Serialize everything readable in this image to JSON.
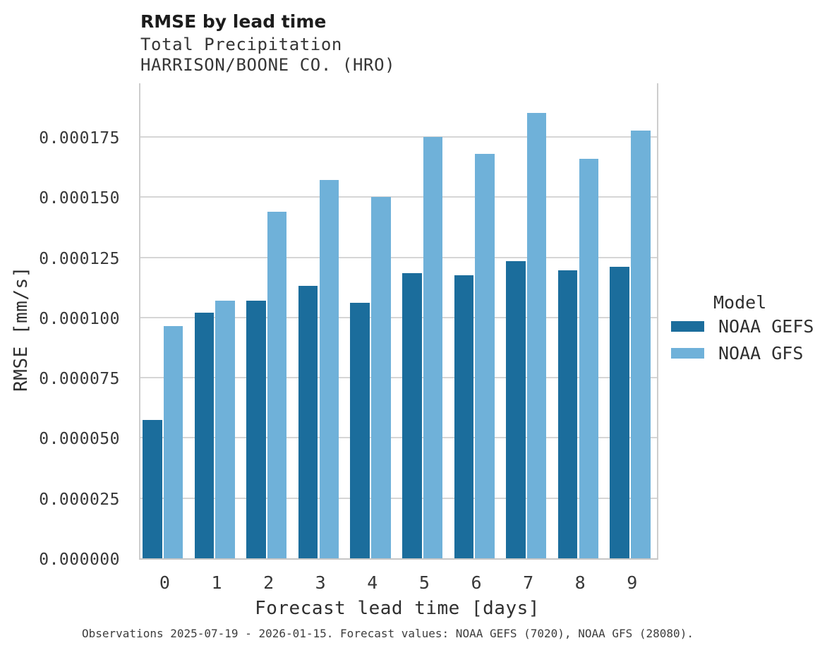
{
  "header": {
    "title": "RMSE by lead time",
    "subtitle1": "Total Precipitation",
    "subtitle2": "HARRISON/BOONE CO. (HRO)"
  },
  "caption": "Observations 2025-07-19 - 2026-01-15. Forecast values: NOAA GEFS (7020), NOAA GFS (28080).",
  "legend": {
    "title": "Model",
    "items": [
      {
        "label": "NOAA GEFS",
        "color": "#1b6d9c"
      },
      {
        "label": "NOAA GFS",
        "color": "#6fb1d9"
      }
    ]
  },
  "colors": {
    "gefs_bar": "#1b6d9c",
    "gfs_bar": "#6fb1d9",
    "gridline": "#d6d6d6",
    "axis_spine": "#cdcdcd"
  },
  "chart_data": {
    "type": "bar",
    "title": "RMSE by lead time",
    "subtitle": [
      "Total Precipitation",
      "HARRISON/BOONE CO. (HRO)"
    ],
    "xlabel": "Forecast lead time [days]",
    "ylabel": "RMSE [mm/s]",
    "categories": [
      "0",
      "1",
      "2",
      "3",
      "4",
      "5",
      "6",
      "7",
      "8",
      "9"
    ],
    "series": [
      {
        "name": "NOAA GEFS",
        "color": "#1b6d9c",
        "values": [
          5.75e-05,
          0.000102,
          0.000107,
          0.000113,
          0.000106,
          0.0001185,
          0.0001175,
          0.0001235,
          0.0001195,
          0.000121
        ]
      },
      {
        "name": "NOAA GFS",
        "color": "#6fb1d9",
        "values": [
          9.65e-05,
          0.000107,
          0.000144,
          0.000157,
          0.00015,
          0.000175,
          0.000168,
          0.000185,
          0.000166,
          0.0001775
        ]
      }
    ],
    "ylim": [
      0,
      0.000198
    ],
    "yticks": [
      0.0,
      2.5e-05,
      5e-05,
      7.5e-05,
      0.0001,
      0.000125,
      0.00015,
      0.000175
    ],
    "ytick_labels": [
      "0.000000",
      "0.000025",
      "0.000050",
      "0.000075",
      "0.000100",
      "0.000125",
      "0.000150",
      "0.000175"
    ],
    "grid": true,
    "legend_title": "Model",
    "legend_position": "right of plot, middle"
  }
}
